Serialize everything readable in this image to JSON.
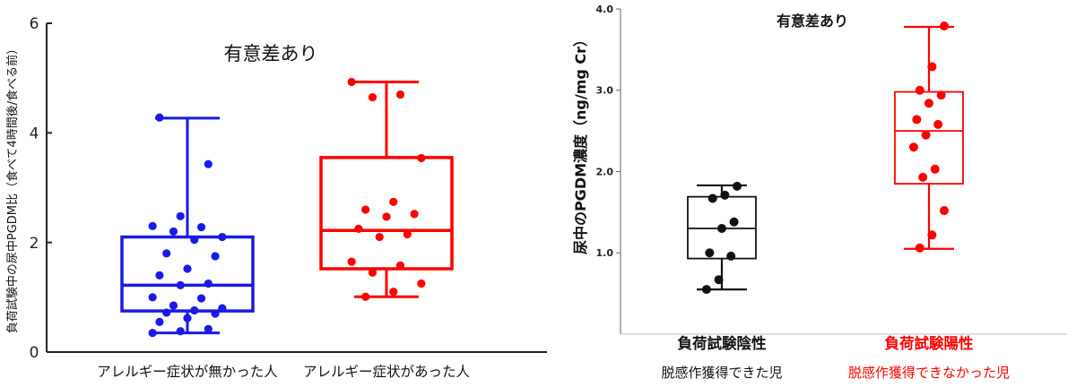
{
  "chart_data": [
    {
      "type": "box",
      "title": "",
      "annotation": "有意差あり",
      "ylabel": "負荷試験中の尿中PGDM比（食べて4時間後/食べる前）",
      "xlabel": "",
      "ylim": [
        0,
        6
      ],
      "yticks": [
        "0",
        "2",
        "4",
        "6"
      ],
      "grid": false,
      "legend": "none",
      "categories": [
        "アレルギー症状が無かった人",
        "アレルギー症状があった人"
      ],
      "colors": [
        "#1a1ae6",
        "#ff0000"
      ],
      "boxes": [
        {
          "whisker_low": 0.35,
          "q1": 0.75,
          "median": 1.22,
          "q3": 2.1,
          "whisker_high": 4.27
        },
        {
          "whisker_low": 1.01,
          "q1": 1.52,
          "median": 2.22,
          "q3": 3.55,
          "whisker_high": 4.93
        }
      ],
      "points": [
        [
          0.35,
          0.38,
          0.42,
          0.55,
          0.62,
          0.7,
          0.72,
          0.76,
          0.8,
          0.85,
          0.98,
          1.0,
          1.22,
          1.25,
          1.4,
          1.52,
          1.75,
          1.8,
          2.05,
          2.1,
          2.2,
          2.28,
          2.3,
          2.48,
          3.43,
          4.28
        ],
        [
          1.01,
          1.1,
          1.25,
          1.45,
          1.58,
          1.65,
          2.1,
          2.15,
          2.25,
          2.47,
          2.52,
          2.6,
          2.74,
          3.54,
          4.65,
          4.7,
          4.93
        ]
      ]
    },
    {
      "type": "box",
      "title": "",
      "annotation": "有意差あり",
      "ylabel": "尿中のPGDM濃度（ng/mg Cr）",
      "xlabel": "",
      "ylim": [
        0,
        4.0
      ],
      "yticks": [
        "1.0",
        "2.0",
        "3.0",
        "4.0"
      ],
      "grid": false,
      "legend": "none",
      "categories": [
        "負荷試験陰性",
        "負荷試験陽性"
      ],
      "sublabels": [
        "脱感作獲得できた児",
        "脱感作獲得できなかった児"
      ],
      "colors": [
        "#111111",
        "#ff0000"
      ],
      "label_colors": [
        "#111111",
        "#ff0000"
      ],
      "boxes": [
        {
          "whisker_low": 0.55,
          "q1": 0.93,
          "median": 1.3,
          "q3": 1.69,
          "whisker_high": 1.83
        },
        {
          "whisker_low": 1.05,
          "q1": 1.85,
          "median": 2.5,
          "q3": 2.98,
          "whisker_high": 3.78
        }
      ],
      "points": [
        [
          0.55,
          0.67,
          0.96,
          1.0,
          1.3,
          1.38,
          1.67,
          1.71,
          1.82
        ],
        [
          1.06,
          1.22,
          1.52,
          1.93,
          2.03,
          2.3,
          2.45,
          2.58,
          2.64,
          2.84,
          2.94,
          3.0,
          3.29,
          3.79
        ]
      ]
    }
  ]
}
